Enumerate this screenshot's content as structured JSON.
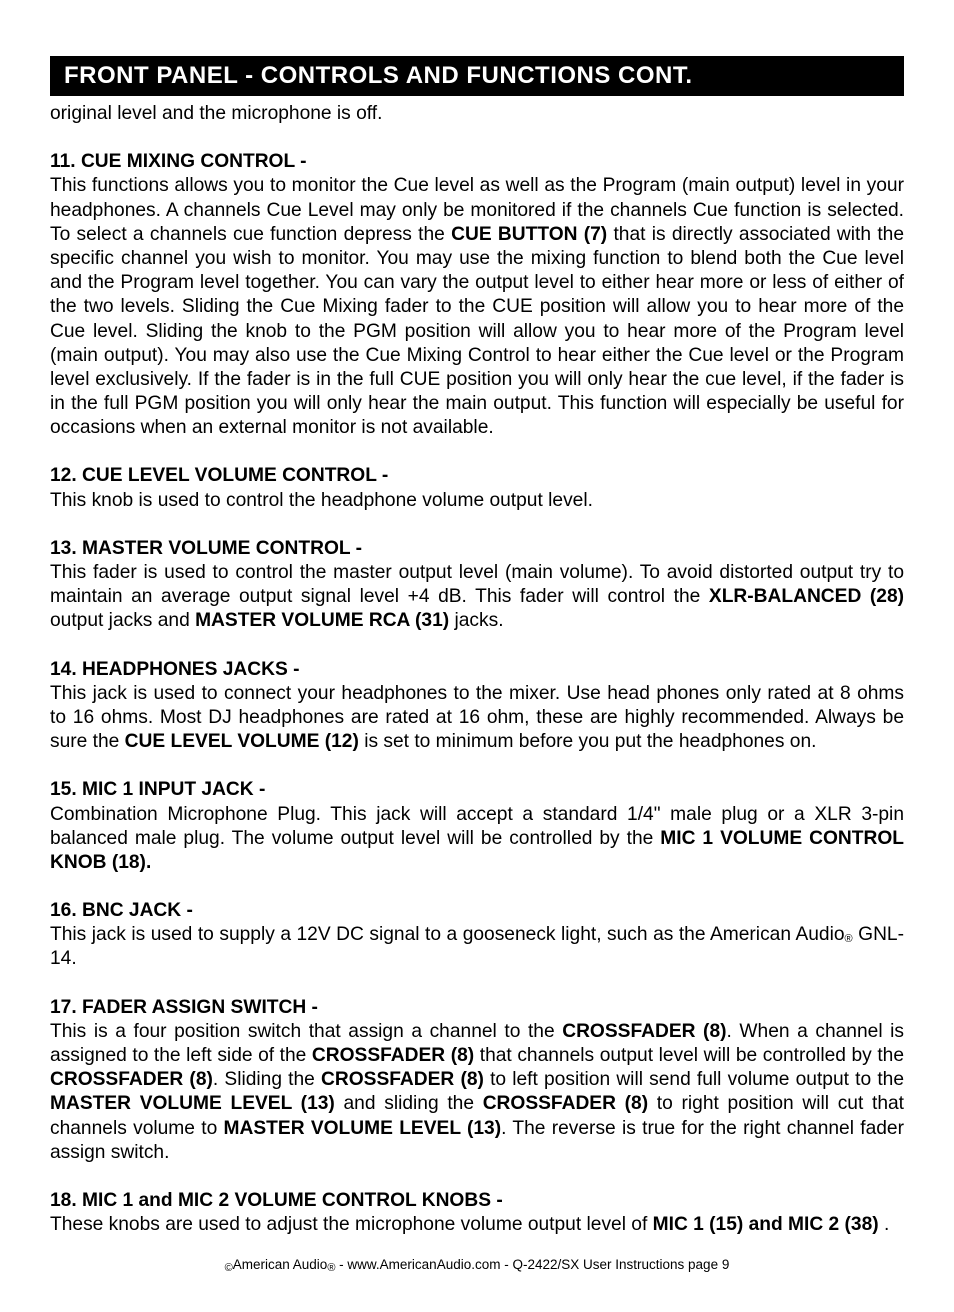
{
  "colors": {
    "banner_bg": "#000000",
    "banner_fg": "#ffffff",
    "page_bg": "#ffffff",
    "text": "#000000"
  },
  "banner_title": "FRONT PANEL - CONTROLS AND FUNCTIONS CONT.",
  "orphan_line": "original level and the microphone is off.",
  "sections": {
    "s11": {
      "heading": "11. CUE MIXING CONTROL -",
      "p1a": "This functions allows you to monitor the Cue level as well as the Program (main output) level in your headphones. A channels Cue Level may only be monitored if the channels Cue function is selected. To select a channels cue function depress the ",
      "b1": "CUE BUTTON (7)",
      "p1b": " that is directly associated with the specific channel you wish to monitor. You may use the mixing function to blend both the Cue level and the Program level together. You can vary the output level to either hear more or less of either of the two levels. Sliding the Cue Mixing fader to the CUE position will allow you to hear more of the Cue level. Sliding the knob to the PGM  position will allow you to hear more of the Program level (main output). You may also use the Cue Mixing Control to hear either the Cue level or the Program level exclusively. If the fader is in the full CUE position you will only hear the cue level, if the fader is in the full PGM position you will only hear the main output. This function will especially be useful for occasions when an external monitor is not available."
    },
    "s12": {
      "heading": "12. CUE LEVEL VOLUME CONTROL -",
      "p1": "This knob is used to control the headphone volume output level."
    },
    "s13": {
      "heading": "13. MASTER VOLUME CONTROL -",
      "p1a": "This fader is used to control the master output level (main volume). To avoid distorted output try to maintain an average output signal level +4 dB. This fader will control the ",
      "b1": "XLR-BALANCED (28)",
      "p1b": " output jacks and ",
      "b2": "MASTER VOLUME RCA (31)",
      "p1c": " jacks."
    },
    "s14": {
      "heading": "14. HEADPHONES JACKS -",
      "p1a": "This jack is used to connect your headphones to the mixer. Use head phones only rated at 8 ohms to 16 ohms. Most DJ headphones are rated at 16 ohm, these are highly recommended. Always be sure the ",
      "b1": "CUE LEVEL VOLUME (12)",
      "p1b": " is set to minimum before you put the headphones on."
    },
    "s15": {
      "heading": "15. MIC 1 INPUT JACK -",
      "p1a": "Combination Microphone Plug. This jack will accept a standard 1/4\" male plug or a XLR 3-pin balanced male plug. The volume output level will be controlled by the ",
      "b1": "MIC 1 VOLUME CONTROL KNOB (18)."
    },
    "s16": {
      "heading": "16. BNC JACK -",
      "p1a": "This jack is used to supply a 12V DC signal to a gooseneck light, such as the American Audio",
      "reg": "®",
      "p1b": " GNL-14."
    },
    "s17": {
      "heading": "17. FADER ASSIGN SWITCH -",
      "p1a": "This is a four position switch that assign a channel to the ",
      "b1": "CROSSFADER (8)",
      "p1b": ". When a channel is assigned to the left side of the ",
      "b2": "CROSSFADER (8)",
      "p1c": " that channels output level will be controlled by the ",
      "b3": "CROSSFADER (8)",
      "p1d": ". Sliding the ",
      "b4": "CROSSFADER (8)",
      "p1e": " to left position will send full volume output to the ",
      "b5": "MASTER VOLUME LEVEL (13)",
      "p1f": " and sliding the ",
      "b6": "CROSSFADER (8)",
      "p1g": " to right position will cut that channels volume to ",
      "b7": "MASTER VOLUME LEVEL (13)",
      "p1h": ". The reverse is true for the right channel fader assign switch."
    },
    "s18": {
      "heading": "18. MIC 1 and MIC 2 VOLUME CONTROL KNOBS -",
      "p1a": "These knobs are used to adjust the microphone volume output level of ",
      "b1": "MIC 1 (15) and MIC 2  (38)",
      "p1b": " ."
    }
  },
  "footer": {
    "copy": "©",
    "t1": "American Audio",
    "reg": "®",
    "t2": " - www.AmericanAudio.com - Q-2422/SX  User Instructions page 9"
  }
}
